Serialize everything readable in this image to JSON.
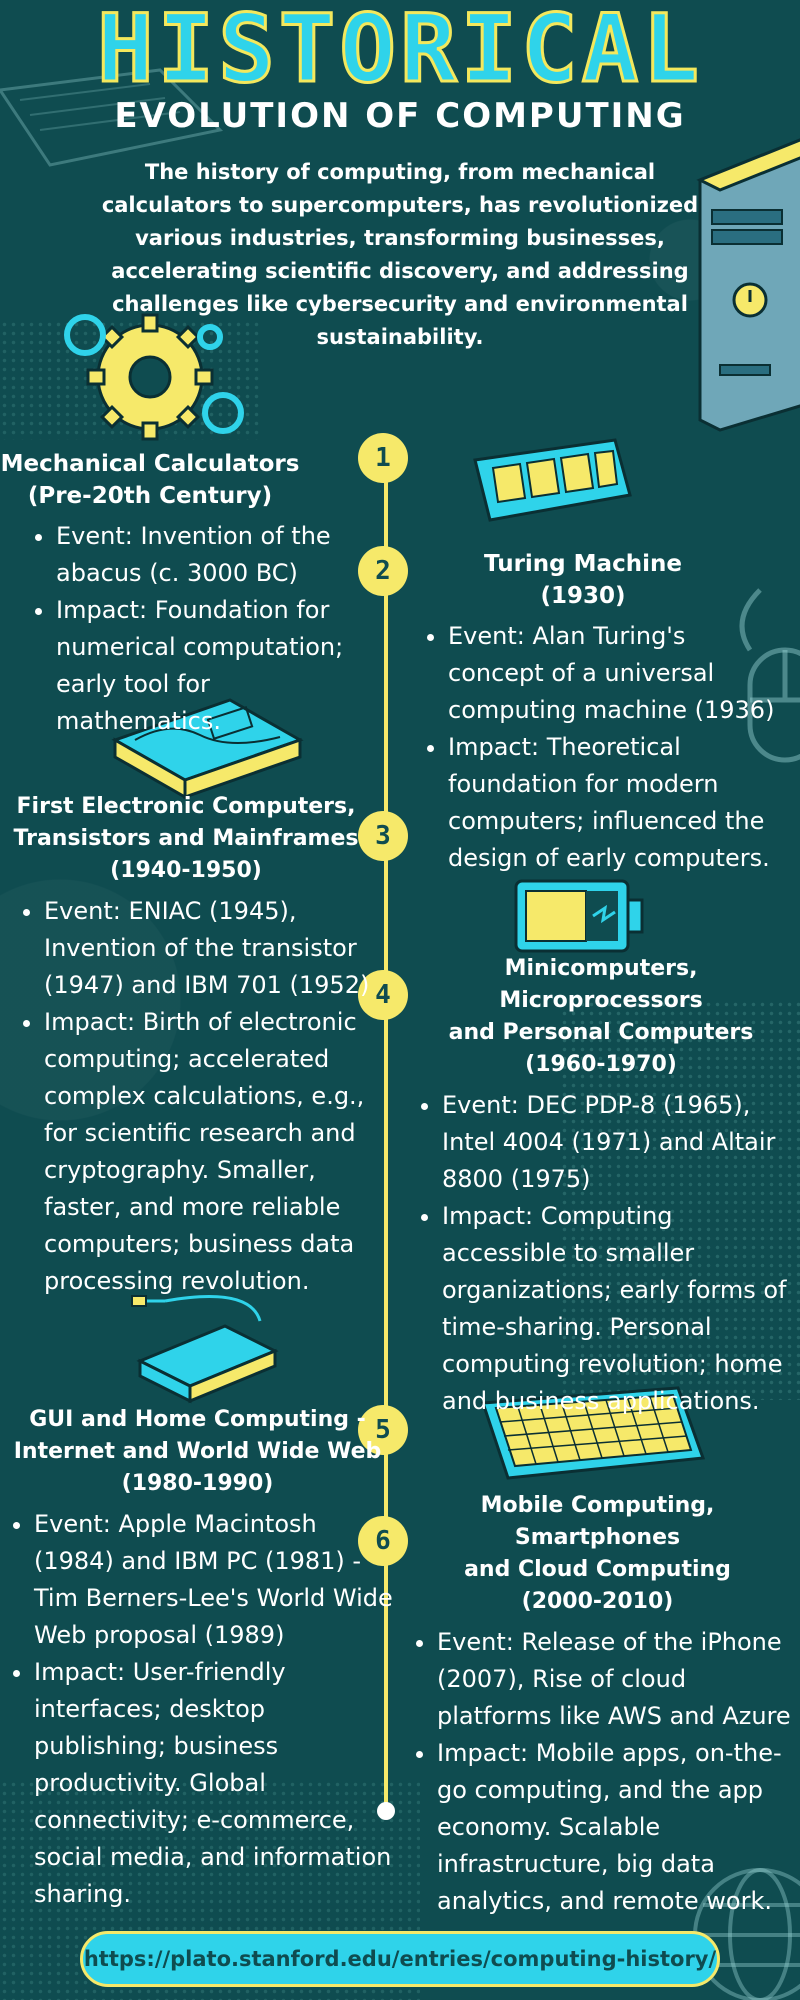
{
  "header": {
    "title_line1": "HISTORICAL",
    "title_line2": "EVOLUTION OF COMPUTING",
    "intro": "The history of computing, from mechanical calculators to supercomputers, has revolutionized various industries, transforming businesses, accelerating scientific discovery, and addressing challenges like cybersecurity and environmental sustainability."
  },
  "milestones": [
    {
      "number": "1",
      "title": "Mechanical Calculators\n(Pre-20th Century)",
      "event": "Event: Invention of the abacus (c. 3000 BC)",
      "impact": "Impact: Foundation for numerical computation; early tool for mathematics."
    },
    {
      "number": "2",
      "title": "Turing Machine\n(1930)",
      "event": "Event: Alan Turing's concept of a universal computing machine (1936)",
      "impact": "Impact: Theoretical foundation for modern computers; influenced the design of early computers."
    },
    {
      "number": "3",
      "title": "First Electronic Computers,\nTransistors and Mainframes\n(1940-1950)",
      "event": "Event: ENIAC (1945), Invention of the transistor (1947) and IBM 701 (1952)",
      "impact": "Impact: Birth of electronic computing; accelerated complex calculations, e.g., for scientific research and cryptography. Smaller, faster, and more reliable computers; business data processing revolution."
    },
    {
      "number": "4",
      "title": "Minicomputers, Microprocessors\nand Personal Computers\n(1960-1970)",
      "event": "Event: DEC PDP-8 (1965), Intel 4004 (1971) and Altair 8800 (1975)",
      "impact": "Impact: Computing accessible to smaller organizations; early forms of time-sharing. Personal computing revolution; home and business applications."
    },
    {
      "number": "5",
      "title": "GUI and Home Computing -\nInternet and World Wide Web\n(1980-1990)",
      "event": "Event: Apple Macintosh (1984) and IBM PC (1981) - Tim Berners-Lee's World Wide Web proposal (1989)",
      "impact": "Impact: User-friendly interfaces; desktop publishing; business productivity. Global connectivity; e-commerce, social media, and information sharing."
    },
    {
      "number": "6",
      "title": "Mobile Computing, Smartphones\nand Cloud Computing\n(2000-2010)",
      "event": "Event: Release of the iPhone (2007), Rise of cloud platforms like AWS and Azure",
      "impact": "Impact: Mobile apps, on-the-go computing, and the app economy. Scalable infrastructure, big data analytics, and remote work."
    }
  ],
  "footer": {
    "url": "https://plato.stanford.edu/entries/computing-history/"
  },
  "colors": {
    "background": "#0f4c50",
    "accent_yellow": "#f6e96a",
    "accent_cyan": "#2fd3ea"
  },
  "icons": [
    "gears-icon",
    "computer-tower-icon",
    "memory-chip-icon",
    "mouse-icon",
    "hard-drive-icon",
    "battery-icon",
    "router-icon",
    "keyboard-icon",
    "globe-icon",
    "laptop-outline-icon"
  ]
}
